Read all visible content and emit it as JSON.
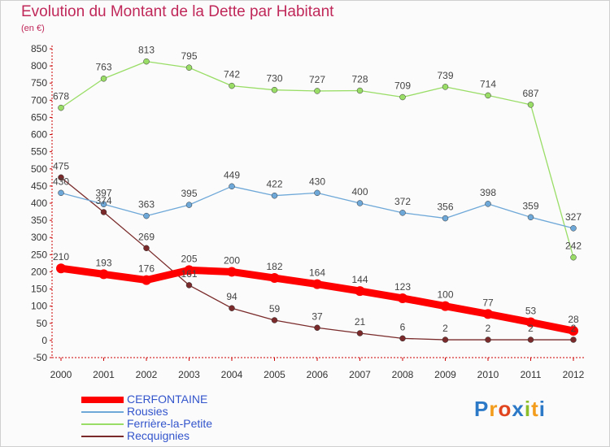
{
  "header": {
    "title": "Evolution du Montant de la Dette par Habitant",
    "subtitle": "(en €)"
  },
  "logo": {
    "text": "Proxiti",
    "colors": [
      "#2c79c7",
      "#f39c1c",
      "#e0451f",
      "#2c79c7",
      "#8cbd2a",
      "#f39c1c",
      "#2c79c7"
    ]
  },
  "chart_data": {
    "type": "line",
    "title": "Evolution du Montant de la Dette par Habitant",
    "subtitle": "(en €)",
    "xlabel": "",
    "ylabel": "",
    "ylim": [
      -50,
      850
    ],
    "ytick_step": 50,
    "grid": false,
    "legend_position": "bottom-left",
    "x": [
      "2000",
      "2001",
      "2002",
      "2003",
      "2004",
      "2005",
      "2006",
      "2007",
      "2008",
      "2009",
      "2010",
      "2011",
      "2012"
    ],
    "series": [
      {
        "name": "CERFONTAINE",
        "color": "#ff0000",
        "values": [
          210,
          193,
          176,
          205,
          200,
          182,
          164,
          144,
          123,
          100,
          77,
          53,
          28
        ]
      },
      {
        "name": "Rousies",
        "color": "#6ea8d8",
        "values": [
          430,
          397,
          363,
          395,
          449,
          422,
          430,
          400,
          372,
          356,
          398,
          359,
          327
        ]
      },
      {
        "name": "Ferrière-la-Petite",
        "color": "#99dd66",
        "values": [
          678,
          763,
          813,
          795,
          742,
          730,
          727,
          728,
          709,
          739,
          714,
          687,
          242
        ]
      },
      {
        "name": "Recquignies",
        "color": "#7a2a2a",
        "values": [
          475,
          374,
          269,
          161,
          94,
          59,
          37,
          21,
          6,
          2,
          2,
          2,
          2
        ]
      }
    ]
  }
}
